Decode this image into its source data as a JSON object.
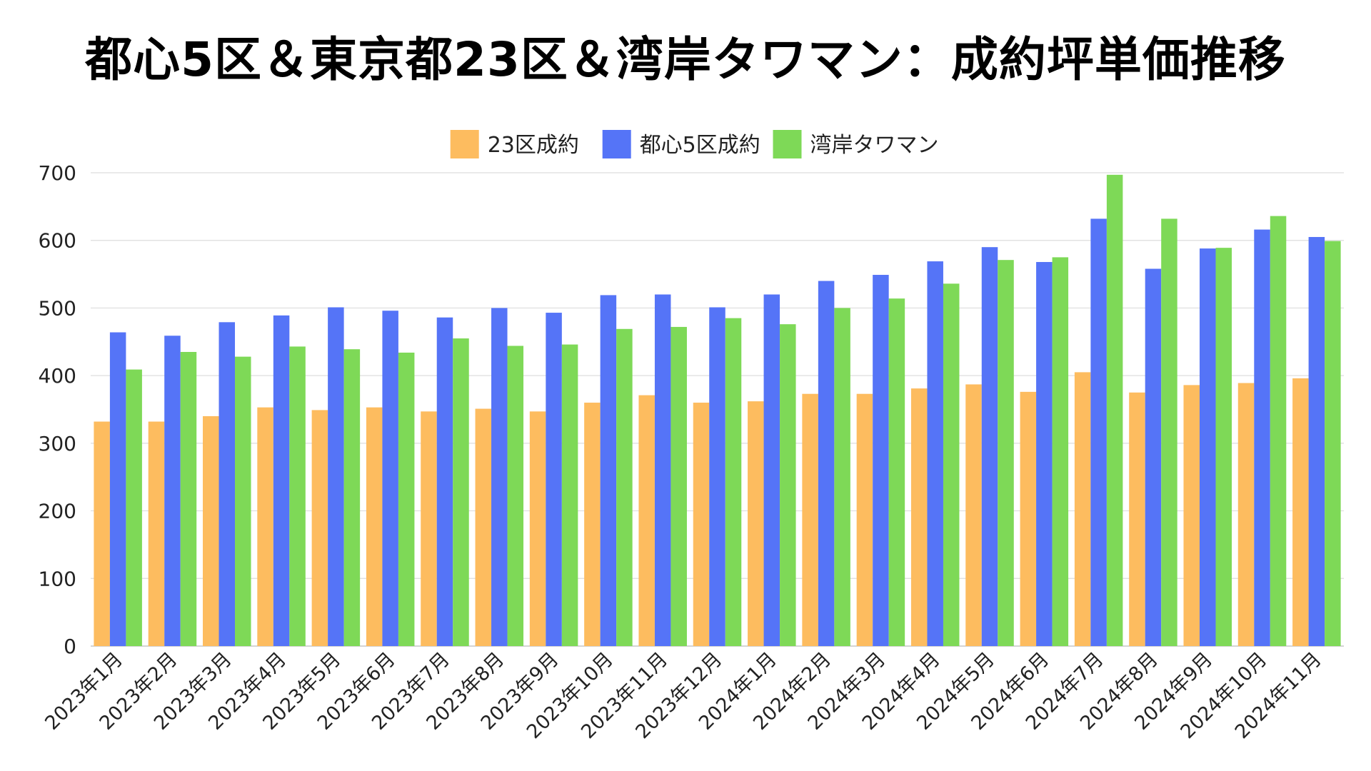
{
  "title": "都心5区＆東京都23区＆湾岸タワマン：成約坪単価推移",
  "chart_data": {
    "type": "bar",
    "title": "都心5区＆東京都23区＆湾岸タワマン：成約坪単価推移",
    "xlabel": "",
    "ylabel": "",
    "ylim": [
      0,
      700
    ],
    "yticks": [
      0,
      100,
      200,
      300,
      400,
      500,
      600,
      700
    ],
    "grid": true,
    "legend_position": "top-center",
    "categories": [
      "2023年1月",
      "2023年2月",
      "2023年3月",
      "2023年4月",
      "2023年5月",
      "2023年6月",
      "2023年7月",
      "2023年8月",
      "2023年9月",
      "2023年10月",
      "2023年11月",
      "2023年12月",
      "2024年1月",
      "2024年2月",
      "2024年3月",
      "2024年4月",
      "2024年5月",
      "2024年6月",
      "2024年7月",
      "2024年8月",
      "2024年9月",
      "2024年10月",
      "2024年11月"
    ],
    "series": [
      {
        "name": "23区成約",
        "color": "#FDBC5F",
        "values": [
          332,
          332,
          340,
          353,
          349,
          353,
          347,
          351,
          347,
          360,
          371,
          360,
          362,
          373,
          373,
          381,
          387,
          376,
          405,
          375,
          386,
          389,
          396
        ]
      },
      {
        "name": "都心5区成約",
        "color": "#5574F7",
        "values": [
          464,
          459,
          479,
          489,
          501,
          496,
          486,
          500,
          493,
          519,
          520,
          501,
          520,
          540,
          549,
          569,
          590,
          568,
          632,
          558,
          588,
          616,
          605
        ]
      },
      {
        "name": "湾岸タワマン",
        "color": "#7ED957",
        "values": [
          409,
          435,
          428,
          443,
          439,
          434,
          455,
          444,
          446,
          469,
          472,
          485,
          476,
          500,
          514,
          536,
          571,
          575,
          697,
          632,
          589,
          636,
          599
        ]
      }
    ]
  }
}
